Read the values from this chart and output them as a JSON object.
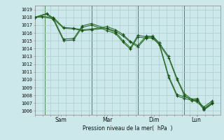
{
  "background_color": "#cce8ea",
  "grid_color": "#aacccc",
  "line_color": "#2d6e2d",
  "marker_color": "#1a4d1a",
  "xlabel": "Pression niveau de la mer(  hPa  )",
  "ylim": [
    1005.5,
    1019.5
  ],
  "yticks": [
    1006,
    1007,
    1008,
    1009,
    1010,
    1011,
    1012,
    1013,
    1014,
    1015,
    1016,
    1017,
    1018,
    1019
  ],
  "day_labels": [
    "Sam",
    "Mar",
    "Dim",
    "Lun"
  ],
  "day_positions": [
    0.14,
    0.39,
    0.64,
    0.87
  ],
  "vline_positions": [
    0.055,
    0.305,
    0.555,
    0.805
  ],
  "lines": [
    {
      "x": [
        0.0,
        0.04,
        0.1,
        0.155,
        0.21,
        0.255,
        0.305,
        0.39,
        0.435,
        0.475,
        0.515,
        0.555,
        0.6,
        0.635,
        0.67,
        0.72,
        0.765,
        0.805,
        0.845,
        0.875,
        0.91,
        0.955
      ],
      "y": [
        1018.0,
        1018.1,
        1018.0,
        1016.7,
        1016.6,
        1016.4,
        1016.5,
        1016.8,
        1016.4,
        1015.8,
        1014.9,
        1014.4,
        1015.6,
        1015.5,
        1014.7,
        1013.0,
        1010.2,
        1008.2,
        1007.5,
        1007.6,
        1006.2,
        1007.0
      ]
    },
    {
      "x": [
        0.0,
        0.04,
        0.1,
        0.155,
        0.21,
        0.255,
        0.305,
        0.39,
        0.435,
        0.475,
        0.515,
        0.555,
        0.6,
        0.635,
        0.67,
        0.72,
        0.765,
        0.805,
        0.845,
        0.875,
        0.91,
        0.955
      ],
      "y": [
        1018.0,
        1018.05,
        1017.8,
        1016.6,
        1016.5,
        1016.3,
        1016.4,
        1016.6,
        1016.2,
        1015.6,
        1014.8,
        1014.2,
        1015.4,
        1015.3,
        1014.5,
        1012.8,
        1010.0,
        1008.0,
        1007.3,
        1007.4,
        1006.1,
        1006.9
      ]
    },
    {
      "x": [
        0.0,
        0.065,
        0.1,
        0.155,
        0.21,
        0.255,
        0.305,
        0.39,
        0.435,
        0.475,
        0.515,
        0.555,
        0.6,
        0.635,
        0.67,
        0.72,
        0.765,
        0.805,
        0.87,
        0.91,
        0.955
      ],
      "y": [
        1018.0,
        1018.5,
        1017.9,
        1015.2,
        1015.3,
        1016.9,
        1017.2,
        1016.5,
        1016.1,
        1015.0,
        1014.1,
        1015.7,
        1015.5,
        1015.6,
        1014.7,
        1010.5,
        1008.1,
        1007.8,
        1007.4,
        1006.5,
        1007.3
      ]
    },
    {
      "x": [
        0.0,
        0.065,
        0.1,
        0.155,
        0.21,
        0.255,
        0.305,
        0.39,
        0.435,
        0.475,
        0.515,
        0.555,
        0.6,
        0.635,
        0.67,
        0.72,
        0.765,
        0.805,
        0.87,
        0.91,
        0.955
      ],
      "y": [
        1018.0,
        1018.4,
        1017.7,
        1015.0,
        1015.1,
        1016.7,
        1017.0,
        1016.3,
        1015.9,
        1014.8,
        1013.9,
        1015.5,
        1015.3,
        1015.4,
        1014.5,
        1010.3,
        1007.9,
        1007.6,
        1007.2,
        1006.3,
        1007.1
      ]
    }
  ]
}
